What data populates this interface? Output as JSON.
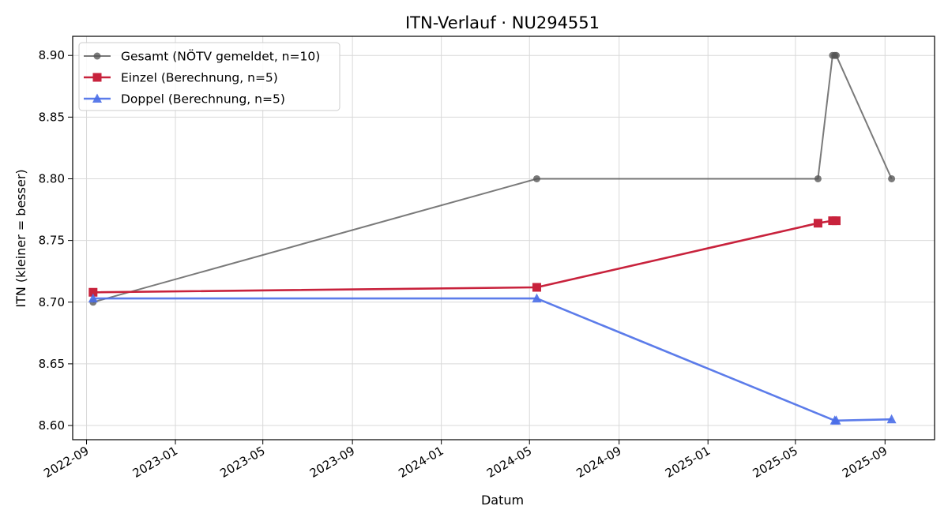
{
  "chart_data": {
    "type": "line",
    "title": "ITN-Verlauf · NU294551",
    "xlabel": "Datum",
    "ylabel": "ITN  (kleiner = besser)",
    "xlim": [
      "2022-08-13",
      "2025-11-08"
    ],
    "ylim": [
      8.5885,
      8.9155
    ],
    "x_ticks": [
      "2022-09-01",
      "2023-01-01",
      "2023-05-01",
      "2023-09-01",
      "2024-01-01",
      "2024-05-01",
      "2024-09-01",
      "2025-01-01",
      "2025-05-01",
      "2025-09-01"
    ],
    "x_tick_labels": [
      "2022-09",
      "2023-01",
      "2023-05",
      "2023-09",
      "2024-01",
      "2024-05",
      "2024-09",
      "2025-01",
      "2025-05",
      "2025-09"
    ],
    "y_ticks": [
      8.6,
      8.65,
      8.7,
      8.75,
      8.8,
      8.85,
      8.9
    ],
    "y_tick_labels": [
      "8.60",
      "8.65",
      "8.70",
      "8.75",
      "8.80",
      "8.85",
      "8.90"
    ],
    "grid": true,
    "legend_position": "top-left",
    "series": [
      {
        "name": "Gesamt (NÖTV gemeldet, n=10)",
        "color": "#555555",
        "marker": "circle",
        "x": [
          "2022-09-10",
          "2024-05-11",
          "2025-06-01",
          "2025-06-21",
          "2025-06-24",
          "2025-06-26",
          "2025-09-10"
        ],
        "y": [
          8.7,
          8.8,
          8.8,
          8.9,
          8.9,
          8.9,
          8.8
        ]
      },
      {
        "name": "Einzel (Berechnung, n=5)",
        "color": "#c8223c",
        "marker": "square",
        "x": [
          "2022-09-10",
          "2024-05-11",
          "2025-06-01",
          "2025-06-21",
          "2025-06-26"
        ],
        "y": [
          8.708,
          8.712,
          8.764,
          8.766,
          8.766
        ]
      },
      {
        "name": "Doppel (Berechnung, n=5)",
        "color": "#4a6ee8",
        "marker": "triangle",
        "x": [
          "2022-09-10",
          "2024-05-11",
          "2025-06-24",
          "2025-06-26",
          "2025-09-10"
        ],
        "y": [
          8.703,
          8.703,
          8.604,
          8.604,
          8.605
        ]
      }
    ]
  }
}
